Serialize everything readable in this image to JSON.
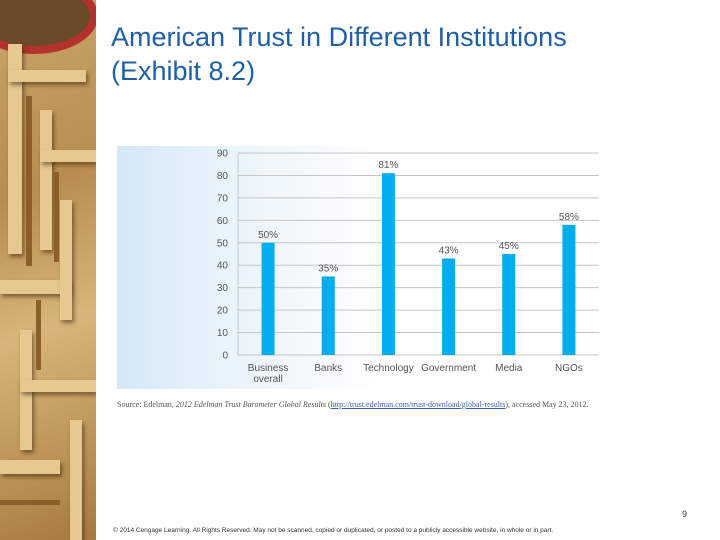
{
  "slide": {
    "title_line1": "American Trust in Different Institutions",
    "title_line2": "(Exhibit 8.2)",
    "page_number": "9",
    "footer": "© 2014 Cengage Learning. All Rights Reserved. May not be scanned, copied or duplicated, or posted to a publicly accessible website, in whole or in part."
  },
  "source": {
    "prefix": "Source: Edelman, ",
    "publication": "2012 Edelman Trust Barometer Global Results",
    "open_paren": " (",
    "url": "http://trust.edelman.com/trust-download/global-results",
    "suffix": "), accessed May 23, 2012."
  },
  "colors": {
    "bar": "#00aeef",
    "title": "#1f5fa8",
    "grid": "#c6c6c6",
    "label": "#555555"
  },
  "chart_data": {
    "type": "bar",
    "title": "",
    "xlabel": "",
    "ylabel": "",
    "ylim": [
      0,
      90
    ],
    "yticks": [
      0,
      10,
      20,
      30,
      40,
      50,
      60,
      70,
      80,
      90
    ],
    "grid": true,
    "categories": [
      [
        "Business",
        "overall"
      ],
      [
        "Banks"
      ],
      [
        "Technology"
      ],
      [
        "Government"
      ],
      [
        "Media"
      ],
      [
        "NGOs"
      ]
    ],
    "values": [
      50,
      35,
      81,
      43,
      45,
      58
    ],
    "data_labels": [
      "50%",
      "35%",
      "81%",
      "43%",
      "45%",
      "58%"
    ]
  }
}
